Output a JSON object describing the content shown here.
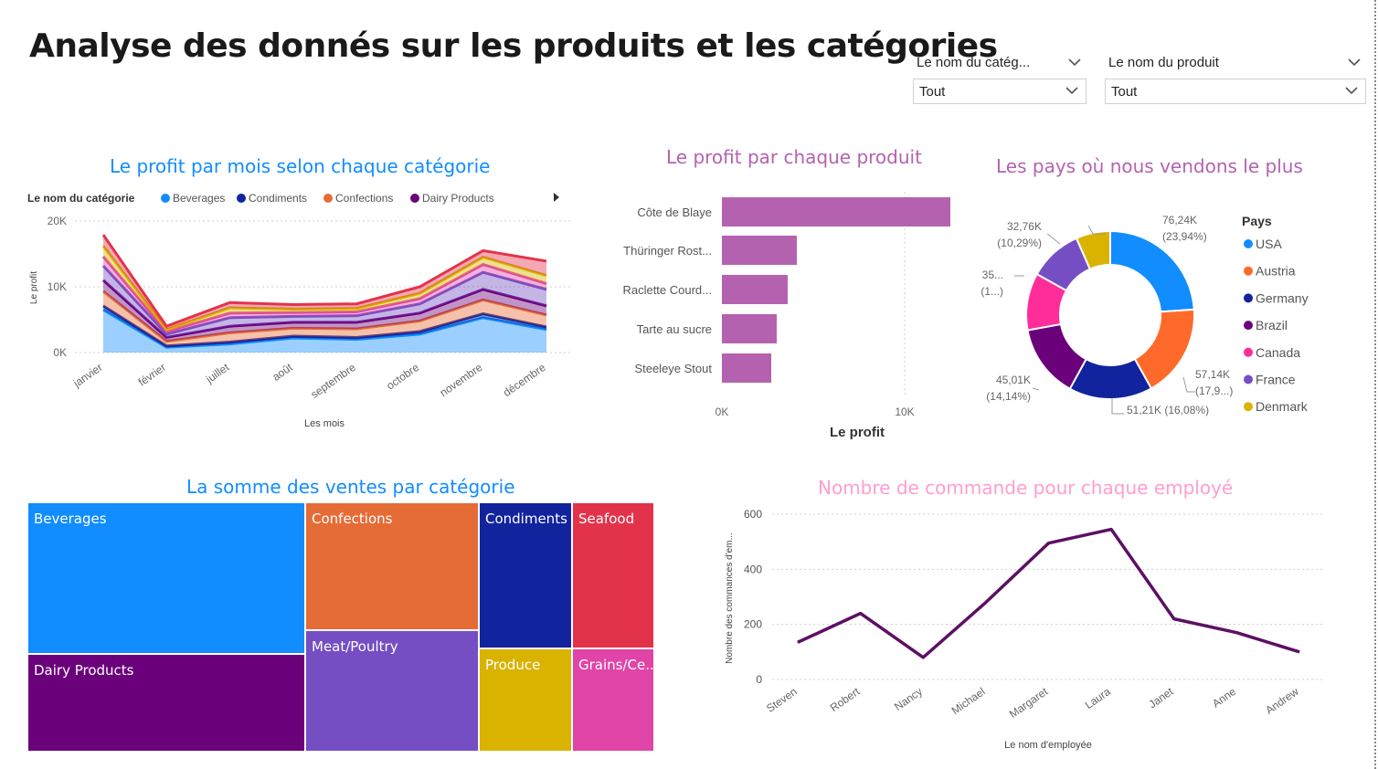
{
  "page": {
    "title": "Analyse des donnés sur les produits et les catégories"
  },
  "filters": {
    "category": {
      "label": "Le nom du catég...",
      "value": "Tout"
    },
    "product": {
      "label": "Le nom du produit",
      "value": "Tout"
    }
  },
  "colors": {
    "Beverages": "#118dff",
    "Condiments": "#12239e",
    "Confections": "#e66c37",
    "Dairy Products": "#6b007b",
    "Meat/Poultry": "#744ec2",
    "Produce": "#d9b300",
    "Grains/Cereals": "#e044a7",
    "Seafood": "#e3334b",
    "USA": "#118dff",
    "Austria": "#ff6a2a",
    "Germany": "#12239e",
    "Brazil": "#6b007b",
    "Canada": "#ff2d9a",
    "France": "#744ec2",
    "Denmark": "#d9b300",
    "bar": "#b462b0",
    "line": "#5c1064"
  },
  "chart_data": [
    {
      "type": "area",
      "title": "Le profit par mois selon chaque catégorie",
      "xlabel": "Les mois",
      "ylabel": "Le profit",
      "legend_title": "Le nom du catégorie",
      "legend_visible": [
        "Beverages",
        "Condiments",
        "Confections",
        "Dairy Products"
      ],
      "legend_placement": "top",
      "categories": [
        "janvier",
        "février",
        "juillet",
        "août",
        "septembre",
        "octobre",
        "novembre",
        "décembre"
      ],
      "y_ticks": [
        "0K",
        "10K",
        "20K"
      ],
      "ylim": [
        0,
        20000
      ],
      "stacked": true,
      "series": [
        {
          "name": "Beverages",
          "values": [
            6500,
            800,
            1300,
            2200,
            2000,
            2800,
            5300,
            3500
          ]
        },
        {
          "name": "Condiments",
          "values": [
            600,
            200,
            300,
            300,
            300,
            400,
            600,
            400
          ]
        },
        {
          "name": "Confections",
          "values": [
            2200,
            700,
            1400,
            1200,
            1300,
            1600,
            2100,
            1800
          ]
        },
        {
          "name": "Dairy Products",
          "values": [
            1700,
            600,
            1000,
            900,
            1000,
            1200,
            1600,
            1400
          ]
        },
        {
          "name": "Meat/Poultry",
          "values": [
            2200,
            500,
            1300,
            900,
            1000,
            1400,
            2600,
            2500
          ]
        },
        {
          "name": "Grains/Cereals",
          "values": [
            1400,
            400,
            700,
            600,
            600,
            800,
            1200,
            900
          ]
        },
        {
          "name": "Produce",
          "values": [
            1600,
            300,
            800,
            500,
            500,
            800,
            1100,
            1200
          ]
        },
        {
          "name": "Seafood",
          "values": [
            1700,
            500,
            800,
            700,
            700,
            1000,
            1000,
            2200
          ]
        }
      ]
    },
    {
      "type": "bar",
      "title": "Le profit par chaque produit",
      "xlabel": "Le profit",
      "categories": [
        "Côte de Blaye",
        "Thüringer Rost...",
        "Raclette Courd...",
        "Tarte au sucre",
        "Steeleye Stout"
      ],
      "values": [
        12500,
        4100,
        3600,
        3000,
        2700
      ],
      "x_ticks": [
        "0K",
        "10K"
      ],
      "xlim": [
        0,
        15000
      ]
    },
    {
      "type": "pie",
      "donut": true,
      "title": "Les pays où nous vendons le plus",
      "legend_title": "Pays",
      "legend_placement": "right",
      "slices": [
        {
          "name": "USA",
          "value": 23.94,
          "label": "76,24K\n(23,94%)"
        },
        {
          "name": "Austria",
          "value": 17.95,
          "label": "57,14K\n(17,9...)"
        },
        {
          "name": "Germany",
          "value": 16.08,
          "label": "51,21K (16,08%)"
        },
        {
          "name": "Brazil",
          "value": 14.14,
          "label": "45,01K\n(14,14%)"
        },
        {
          "name": "Canada",
          "value": 11.0,
          "label": "35...\n(1...)"
        },
        {
          "name": "France",
          "value": 10.29,
          "label": "32,76K\n(10,29%)"
        },
        {
          "name": "Denmark",
          "value": 6.6,
          "label": ""
        }
      ]
    },
    {
      "type": "treemap",
      "title": "La somme des ventes par catégorie",
      "items": [
        {
          "name": "Beverages",
          "label": "Beverages"
        },
        {
          "name": "Dairy Products",
          "label": "Dairy Products"
        },
        {
          "name": "Confections",
          "label": "Confections"
        },
        {
          "name": "Meat/Poultry",
          "label": "Meat/Poultry"
        },
        {
          "name": "Condiments",
          "label": "Condiments"
        },
        {
          "name": "Produce",
          "label": "Produce"
        },
        {
          "name": "Seafood",
          "label": "Seafood"
        },
        {
          "name": "Grains/Cereals",
          "label": "Grains/Ce..."
        }
      ]
    },
    {
      "type": "line",
      "title": "Nombre de commande pour chaque employé",
      "xlabel": "Le nom d'employée",
      "ylabel": "Nombre des commances d'em...",
      "categories": [
        "Steven",
        "Robert",
        "Nancy",
        "Michael",
        "Margaret",
        "Laura",
        "Janet",
        "Anne",
        "Andrew"
      ],
      "values": [
        135,
        240,
        80,
        280,
        495,
        545,
        220,
        170,
        100
      ],
      "y_ticks": [
        "0",
        "200",
        "400",
        "600"
      ],
      "ylim": [
        0,
        600
      ]
    }
  ]
}
